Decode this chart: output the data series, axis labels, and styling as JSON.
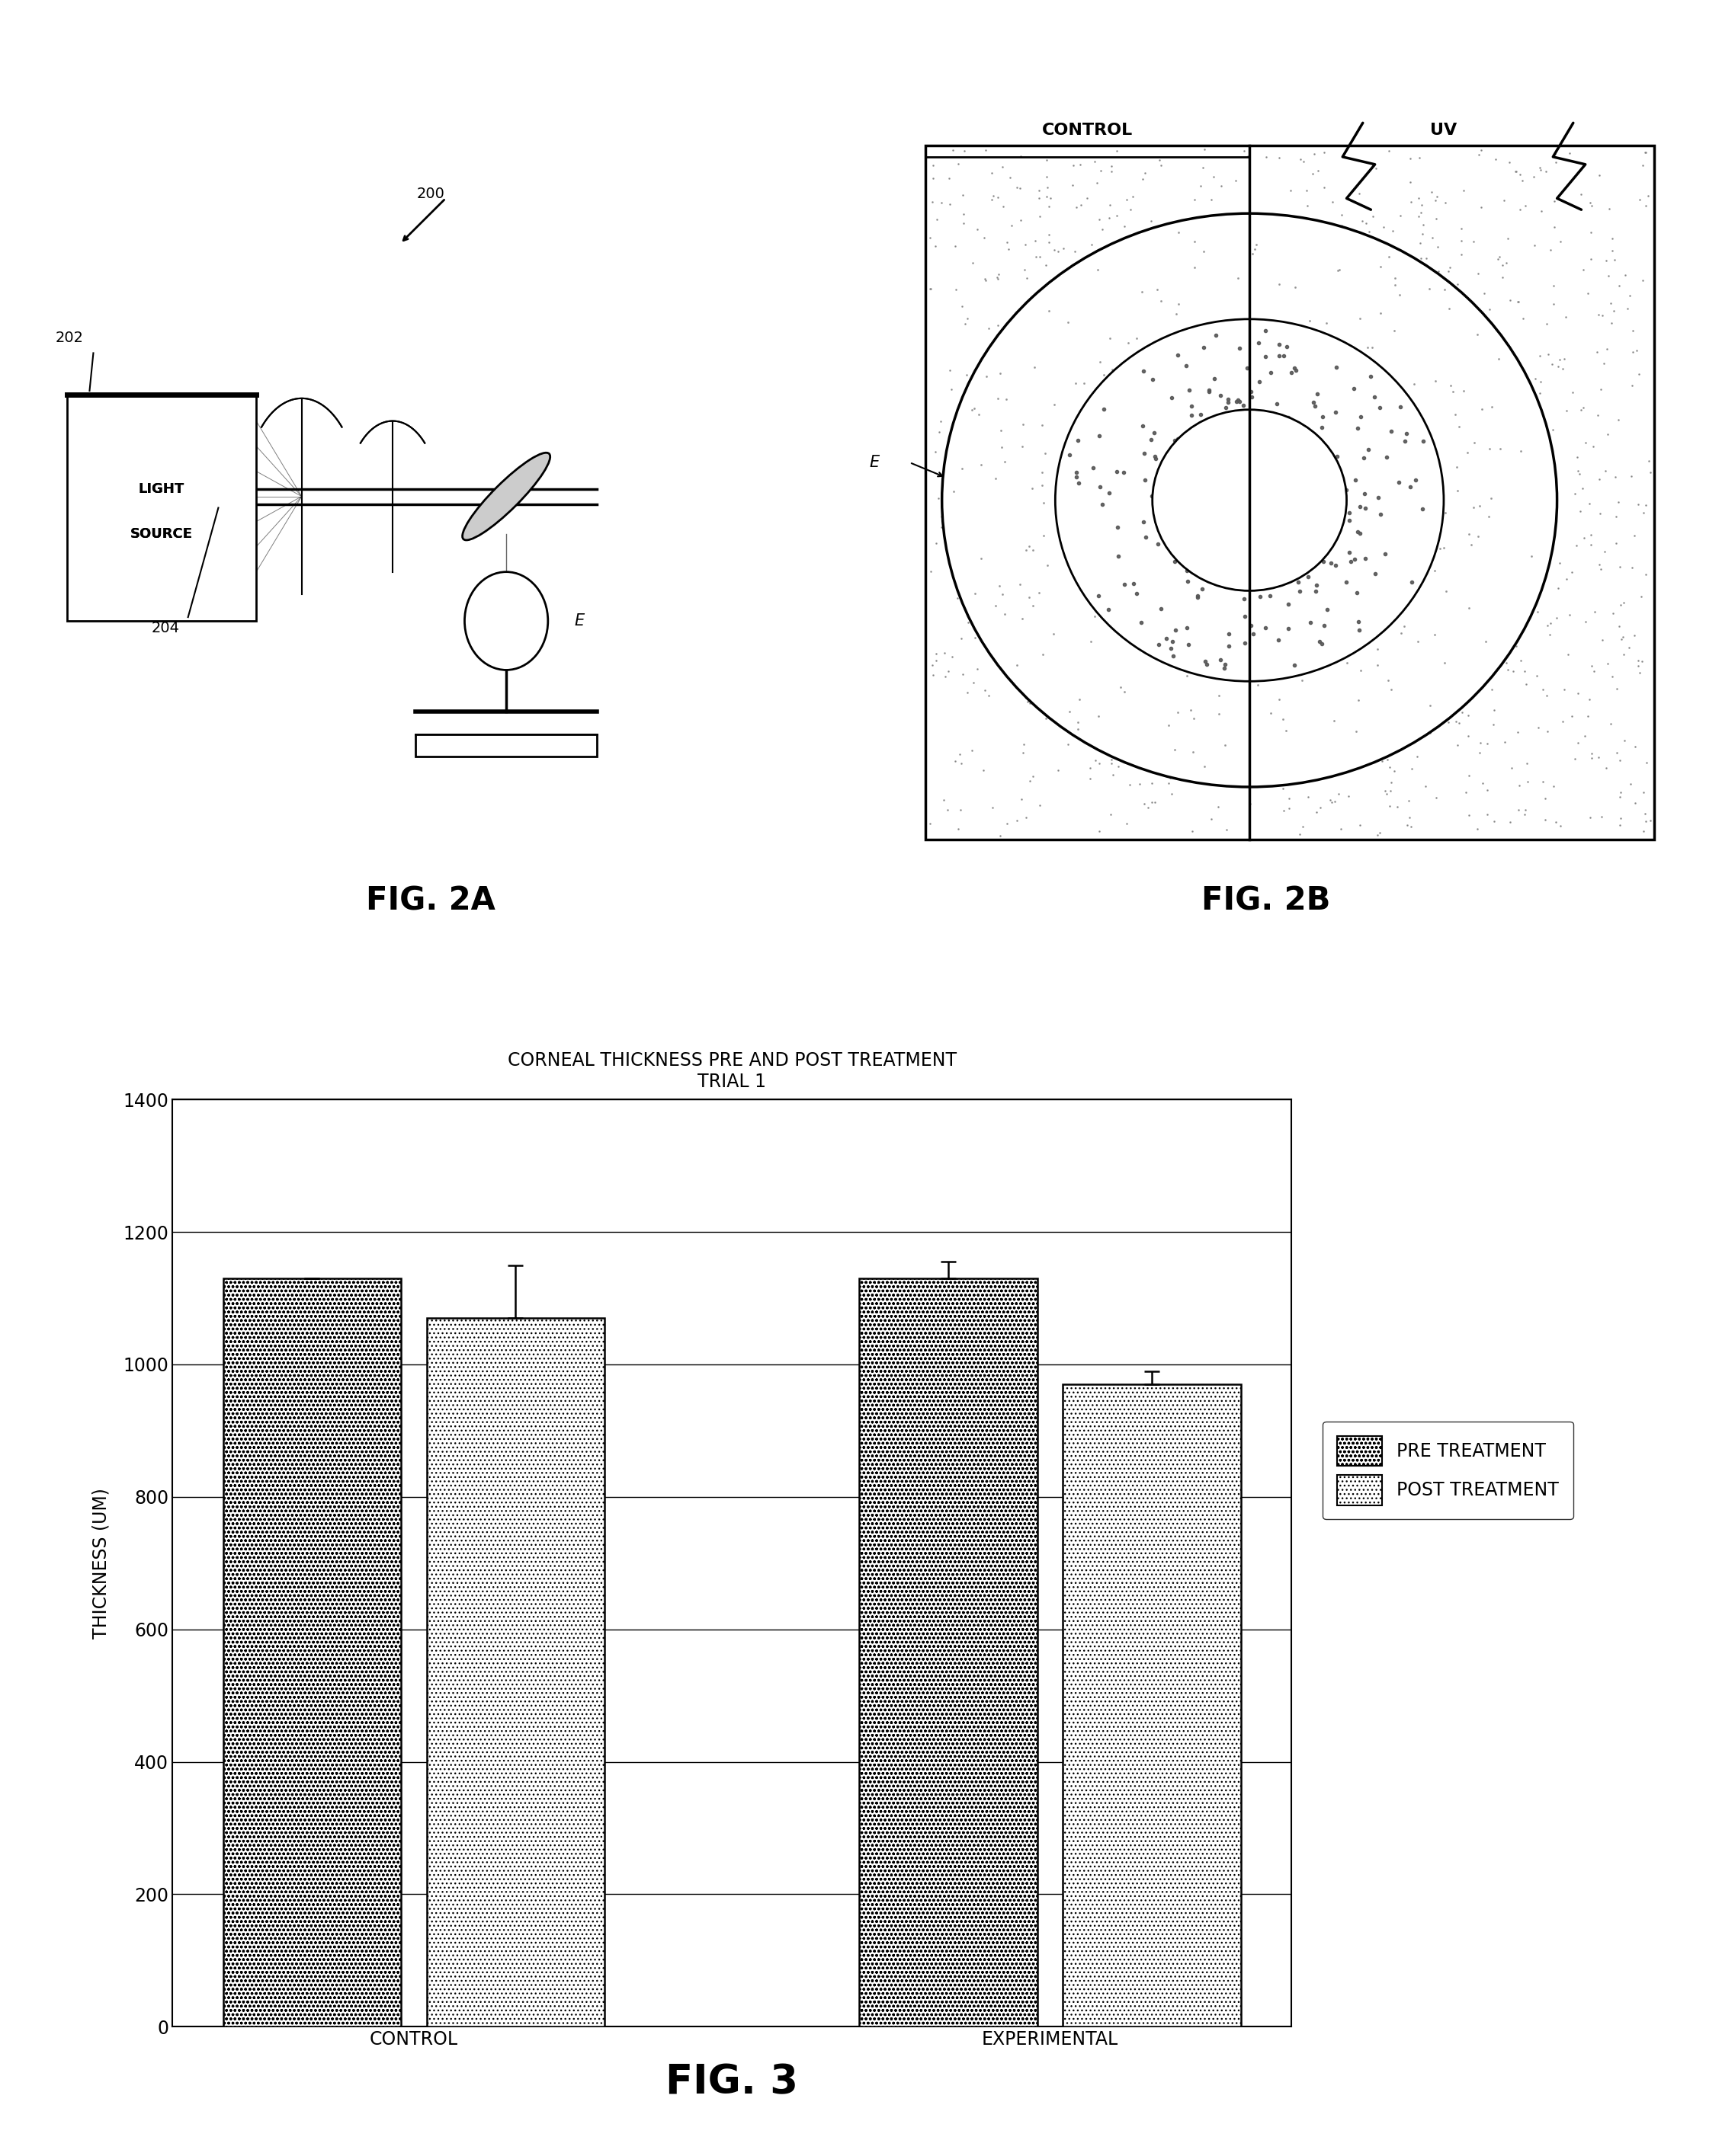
{
  "fig_width": 22.59,
  "fig_height": 28.3,
  "background_color": "#ffffff",
  "chart_title_line1": "CORNEAL THICKNESS PRE AND POST TREATMENT",
  "chart_title_line2": "TRIAL 1",
  "ylabel": "THICKNESS (UM)",
  "categories": [
    "CONTROL",
    "EXPERIMENTAL"
  ],
  "pre_treatment": [
    1130,
    1130
  ],
  "post_treatment": [
    1070,
    970
  ],
  "pre_errors_lo": [
    0,
    0
  ],
  "pre_errors_hi": [
    0,
    25
  ],
  "post_errors_lo": [
    0,
    0
  ],
  "post_errors_hi": [
    80,
    20
  ],
  "ylim": [
    0,
    1400
  ],
  "yticks": [
    0,
    200,
    400,
    600,
    800,
    1000,
    1200,
    1400
  ],
  "pre_color": "#b8b8b8",
  "post_color": "#d8d8d8",
  "bar_edge_color": "#000000",
  "legend_pre": "PRE TREATMENT",
  "legend_post": "POST TREATMENT",
  "fig2a_label": "FIG. 2A",
  "fig2b_label": "FIG. 2B",
  "fig3_label": "FIG. 3",
  "font_size_fig_label": 30,
  "font_size_axis_label": 17,
  "font_size_tick": 17,
  "font_size_title": 17,
  "font_size_legend": 17,
  "font_size_diagram": 14
}
